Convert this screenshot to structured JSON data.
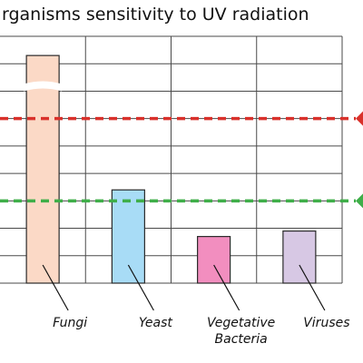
{
  "chart_data": {
    "type": "bar",
    "title": "rganisms sensitivity to UV radiation",
    "categories": [
      [
        "Fungi"
      ],
      [
        "Yeast"
      ],
      [
        "Vegetative",
        "Bacteria"
      ],
      [
        "Viruses"
      ]
    ],
    "values": [
      8.3,
      3.4,
      1.7,
      1.9
    ],
    "bar_colors": [
      "#fbd9c6",
      "#a8dcf6",
      "#f28ebf",
      "#d7c8e4"
    ],
    "axis_break_on": "Fungi",
    "reference_lines": [
      {
        "value": 6.0,
        "color": "#d9312b"
      },
      {
        "value": 3.0,
        "color": "#3fae49"
      }
    ],
    "ylim": [
      0,
      9
    ],
    "grid": true
  }
}
